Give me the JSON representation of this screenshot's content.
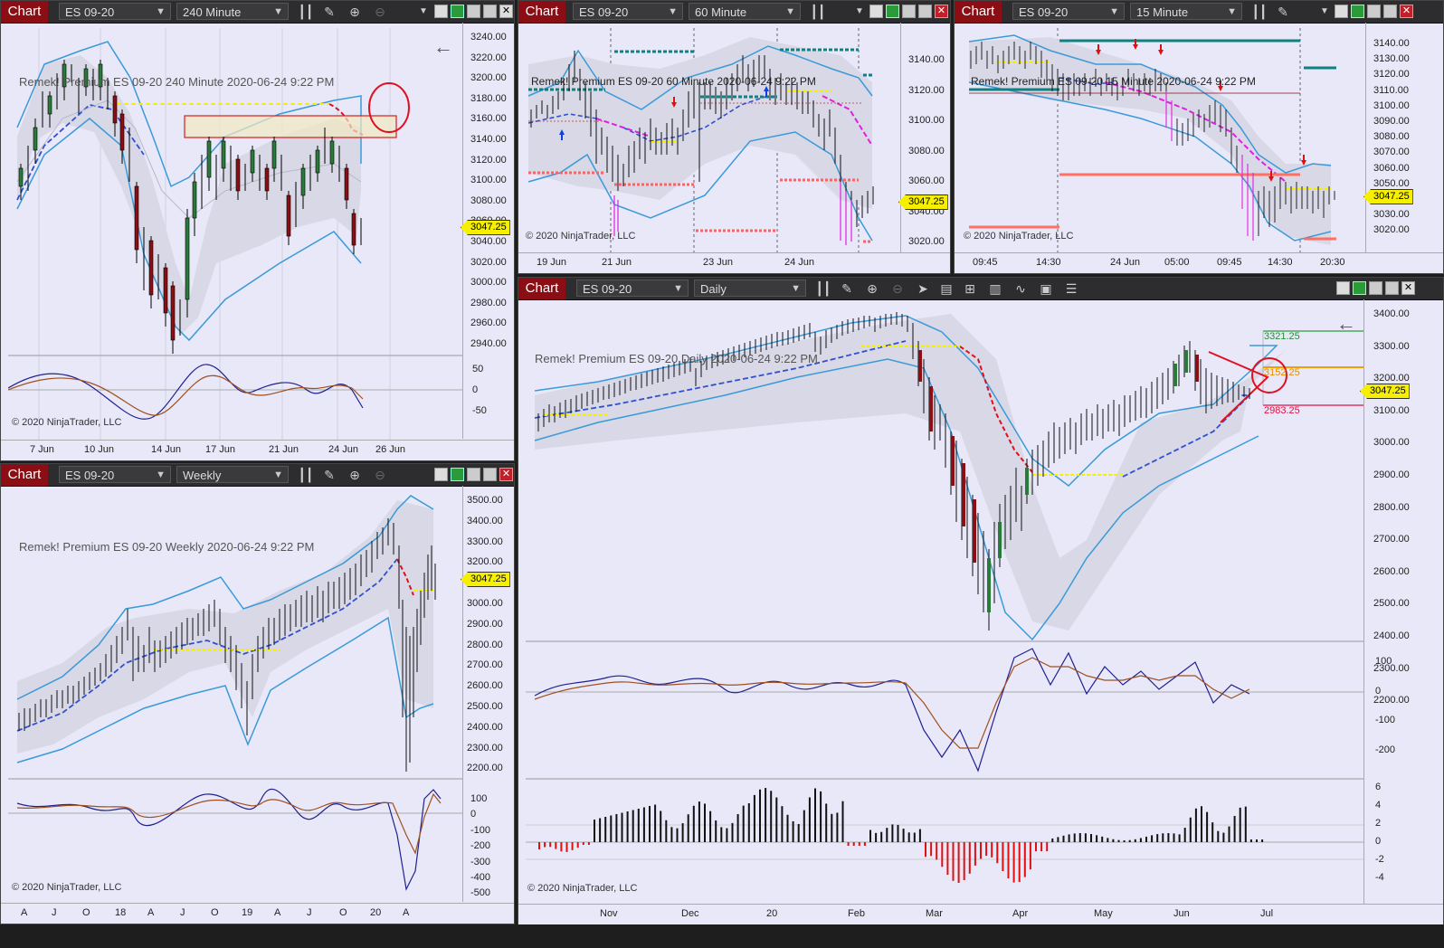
{
  "app_label": "Chart",
  "copyright": "© 2020 NinjaTrader, LLC",
  "windows": {
    "w240": {
      "instrument": "ES 09-20",
      "interval": "240 Minute",
      "overlay": "Remek!  Premium  ES 09-20  240 Minute  2020-06-24 9:22 PM",
      "price": "3047.25",
      "yticks": [
        "3240.00",
        "3220.00",
        "3200.00",
        "3180.00",
        "3160.00",
        "3140.00",
        "3120.00",
        "3100.00",
        "3080.00",
        "3060.00",
        "3040.00",
        "3020.00",
        "3000.00",
        "2980.00",
        "2960.00",
        "2940.00"
      ],
      "oscticks": [
        "50",
        "0",
        "-50"
      ],
      "xticks": [
        "7 Jun",
        "10 Jun",
        "14 Jun",
        "17 Jun",
        "21 Jun",
        "24 Jun",
        "26 Jun"
      ]
    },
    "w60": {
      "instrument": "ES 09-20",
      "interval": "60 Minute",
      "overlay": "Remek!  Premium  ES 09-20  60 Minute  2020-06-24 9:22 PM",
      "price": "3047.25",
      "yticks": [
        "3140.00",
        "3120.00",
        "3100.00",
        "3080.00",
        "3060.00",
        "3040.00",
        "3020.00"
      ],
      "xticks": [
        "19 Jun",
        "21 Jun",
        "23 Jun",
        "24 Jun"
      ]
    },
    "w15": {
      "instrument": "ES 09-20",
      "interval": "15 Minute",
      "overlay": "Remek!  Premium  ES 09-20  15 Minute  2020-06-24 9:22 PM",
      "price": "3047.25",
      "yticks": [
        "3140.00",
        "3130.00",
        "3120.00",
        "3110.00",
        "3100.00",
        "3090.00",
        "3080.00",
        "3070.00",
        "3060.00",
        "3050.00",
        "3040.00",
        "3030.00",
        "3020.00"
      ],
      "xticks": [
        "09:45",
        "14:30",
        "24 Jun",
        "05:00",
        "09:45",
        "14:30",
        "20:30"
      ]
    },
    "wweek": {
      "instrument": "ES 09-20",
      "interval": "Weekly",
      "overlay": "Remek!  Premium  ES 09-20  Weekly  2020-06-24 9:22 PM",
      "price": "3047.25",
      "yticks": [
        "3500.00",
        "3400.00",
        "3300.00",
        "3200.00",
        "3100.00",
        "3000.00",
        "2900.00",
        "2800.00",
        "2700.00",
        "2600.00",
        "2500.00",
        "2400.00",
        "2300.00",
        "2200.00"
      ],
      "oscticks": [
        "100",
        "0",
        "-100",
        "-200",
        "-300",
        "-400",
        "-500"
      ],
      "xticks": [
        "A",
        "J",
        "O",
        "18",
        "A",
        "J",
        "O",
        "19",
        "A",
        "J",
        "O",
        "20",
        "A"
      ]
    },
    "wday": {
      "instrument": "ES 09-20",
      "interval": "Daily",
      "overlay": "Remek!  Premium  ES 09-20  Daily  2020-06-24 9:22 PM",
      "price": "3047.25",
      "level_top": "3321.25",
      "level_mid": "3152.25",
      "level_low": "2983.25",
      "yticks": [
        "3400.00",
        "3300.00",
        "3200.00",
        "3100.00",
        "3000.00",
        "2900.00",
        "2800.00",
        "2700.00",
        "2600.00",
        "2500.00",
        "2400.00",
        "2300.00",
        "2200.00"
      ],
      "oscticks": [
        "100",
        "0",
        "-100",
        "-200"
      ],
      "histticks": [
        "6",
        "4",
        "2",
        "0",
        "-2",
        "-4"
      ],
      "xticks": [
        "Nov",
        "Dec",
        "20",
        "Feb",
        "Mar",
        "Apr",
        "May",
        "Jun",
        "Jul"
      ]
    }
  },
  "colors": {
    "panel_bg": "#e8e8f8",
    "accent": "#8b0e14",
    "price_tag": "#f6f000",
    "band": "#3a9ad8"
  }
}
